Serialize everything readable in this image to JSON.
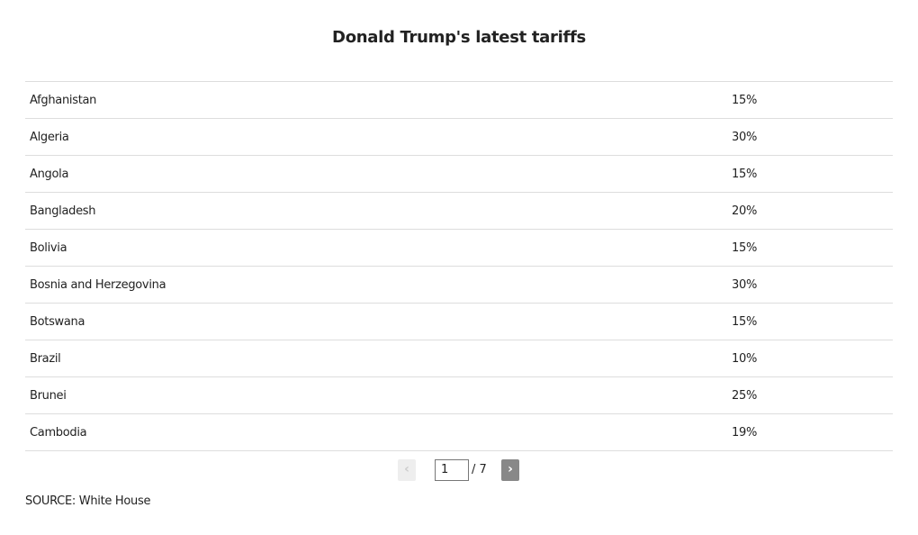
{
  "title": "Donald Trump's latest tariffs",
  "table": {
    "rows": [
      [
        "Afghanistan",
        "15%"
      ],
      [
        "Algeria",
        "30%"
      ],
      [
        "Angola",
        "15%"
      ],
      [
        "Bangladesh",
        "20%"
      ],
      [
        "Bolivia",
        "15%"
      ],
      [
        "Bosnia and Herzegovina",
        "30%"
      ],
      [
        "Botswana",
        "15%"
      ],
      [
        "Brazil",
        "10%"
      ],
      [
        "Brunei",
        "25%"
      ],
      [
        "Cambodia",
        "19%"
      ]
    ]
  },
  "pagination": {
    "prev": "‹",
    "page": "1",
    "total": "/ 7",
    "next": "›"
  },
  "source": "SOURCE: White House"
}
